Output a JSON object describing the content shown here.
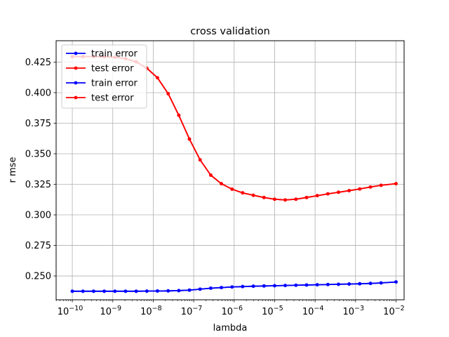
{
  "chart_data": {
    "type": "line",
    "title": "cross validation",
    "xlabel": "lambda",
    "ylabel": "r mse",
    "xscale": "log",
    "xlim": [
      1e-10,
      0.01
    ],
    "ylim": [
      0.2305,
      0.4425
    ],
    "grid": true,
    "legend": {
      "placement": "top-left"
    },
    "x": [
      1e-10,
      1.83e-10,
      3.36e-10,
      6.16e-10,
      1.13e-09,
      2.07e-09,
      3.79e-09,
      6.95e-09,
      1.27e-08,
      2.34e-08,
      4.28e-08,
      7.85e-08,
      1.44e-07,
      2.64e-07,
      4.83e-07,
      8.86e-07,
      1.62e-06,
      2.98e-06,
      5.46e-06,
      1e-05,
      1.83e-05,
      3.36e-05,
      6.16e-05,
      0.000113,
      0.000207,
      0.000379,
      0.000695,
      0.00127,
      0.00234,
      0.00428,
      0.01
    ],
    "series": [
      {
        "name": "train error",
        "color": "#0000ff",
        "values": [
          0.2375,
          0.2375,
          0.2375,
          0.2375,
          0.2375,
          0.2375,
          0.2375,
          0.2376,
          0.2377,
          0.2378,
          0.238,
          0.2384,
          0.2392,
          0.24,
          0.2405,
          0.241,
          0.2413,
          0.2416,
          0.2418,
          0.242,
          0.2422,
          0.2424,
          0.2426,
          0.2428,
          0.243,
          0.2432,
          0.2434,
          0.2436,
          0.2439,
          0.2443,
          0.2451
        ]
      },
      {
        "name": "test error",
        "color": "#ff0000",
        "values": [
          0.4295,
          0.4295,
          0.4295,
          0.4293,
          0.429,
          0.4278,
          0.4252,
          0.42,
          0.4122,
          0.3992,
          0.3815,
          0.362,
          0.345,
          0.3325,
          0.3255,
          0.321,
          0.318,
          0.316,
          0.3142,
          0.3128,
          0.3122,
          0.3128,
          0.3142,
          0.3157,
          0.3172,
          0.3185,
          0.3198,
          0.3212,
          0.3228,
          0.3242,
          0.3255
        ]
      },
      {
        "name": "train error",
        "color": "#0000ff",
        "values": [
          0.2375,
          0.2375,
          0.2375,
          0.2375,
          0.2375,
          0.2375,
          0.2375,
          0.2376,
          0.2377,
          0.2378,
          0.238,
          0.2384,
          0.2392,
          0.24,
          0.2405,
          0.241,
          0.2413,
          0.2416,
          0.2418,
          0.242,
          0.2422,
          0.2424,
          0.2426,
          0.2428,
          0.243,
          0.2432,
          0.2434,
          0.2436,
          0.2439,
          0.2443,
          0.2451
        ]
      },
      {
        "name": "test error",
        "color": "#ff0000",
        "values": [
          0.4295,
          0.4295,
          0.4295,
          0.4293,
          0.429,
          0.4278,
          0.4252,
          0.42,
          0.4122,
          0.3992,
          0.3815,
          0.362,
          0.345,
          0.3325,
          0.3255,
          0.321,
          0.318,
          0.316,
          0.3142,
          0.3128,
          0.3122,
          0.3128,
          0.3142,
          0.3157,
          0.3172,
          0.3185,
          0.3198,
          0.3212,
          0.3228,
          0.3242,
          0.3255
        ]
      }
    ],
    "xticks": [
      1e-10,
      1e-09,
      1e-08,
      1e-07,
      1e-06,
      1e-05,
      0.0001,
      0.001,
      0.01
    ],
    "xtick_mantissa": [
      "10",
      "10",
      "10",
      "10",
      "10",
      "10",
      "10",
      "10",
      "10"
    ],
    "xtick_exponents": [
      "−10",
      "−9",
      "−8",
      "−7",
      "−6",
      "−5",
      "−4",
      "−3",
      "−2"
    ],
    "yticks": [
      0.25,
      0.275,
      0.3,
      0.325,
      0.35,
      0.375,
      0.4,
      0.425
    ],
    "ytick_labels": [
      "0.250",
      "0.275",
      "0.300",
      "0.325",
      "0.350",
      "0.375",
      "0.400",
      "0.425"
    ]
  }
}
